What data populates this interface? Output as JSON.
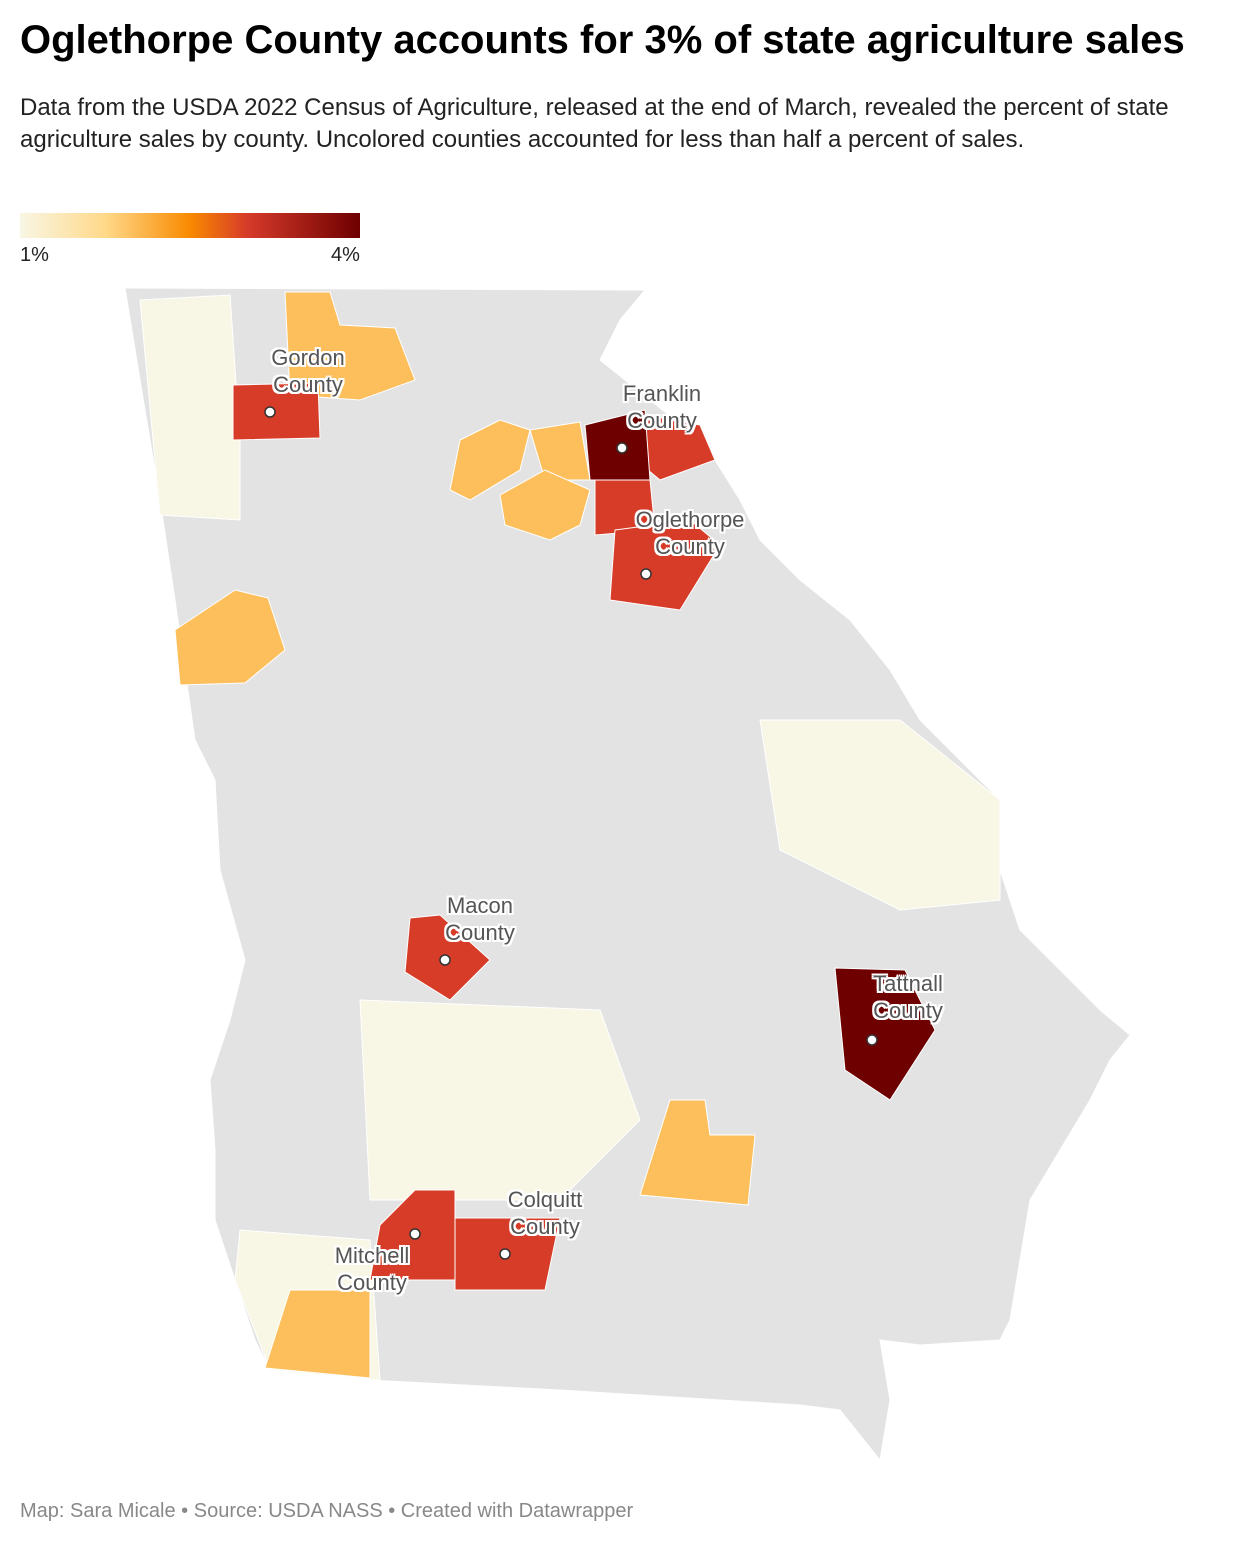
{
  "chart_data": {
    "type": "choropleth",
    "title": "Oglethorpe County accounts for 3% of state agriculture sales",
    "subtitle": "Data from the USDA 2022 Census of Agriculture, released at the end of March, revealed the percent of state agriculture sales by county. Uncolored counties accounted for less than half a percent of sales.",
    "legend": {
      "ticks": [
        {
          "value": 1,
          "label": "1%"
        },
        {
          "value": 4,
          "label": "4%"
        }
      ]
    },
    "regions": [
      {
        "name": "Gordon County",
        "value": 3
      },
      {
        "name": "Franklin County",
        "value": 4
      },
      {
        "name": null,
        "value": 3
      },
      {
        "name": null,
        "value": 3
      },
      {
        "name": "Oglethorpe County",
        "value": 3
      },
      {
        "name": "Macon County",
        "value": 3
      },
      {
        "name": "Tattnall County",
        "value": 4
      },
      {
        "name": "Mitchell County",
        "value": 3
      },
      {
        "name": "Colquitt County",
        "value": 3
      },
      {
        "name": null,
        "value": 2
      },
      {
        "name": null,
        "value": 2
      },
      {
        "name": null,
        "value": 2
      },
      {
        "name": null,
        "value": 2
      },
      {
        "name": null,
        "value": 2
      },
      {
        "name": null,
        "value": 2
      },
      {
        "name": null,
        "value": 2
      },
      {
        "name": null,
        "value": 1
      },
      {
        "name": null,
        "value": 1
      },
      {
        "name": null,
        "value": 1
      },
      {
        "name": null,
        "value": 1
      }
    ],
    "footer": "Map: Sara Micale • Source: USDA NASS • Created with Datawrapper"
  }
}
